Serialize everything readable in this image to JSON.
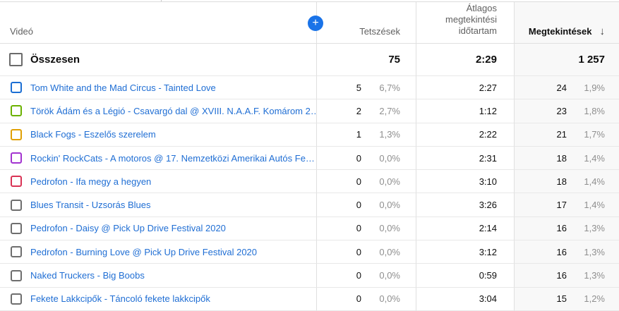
{
  "header": {
    "video_label": "Videó",
    "likes_label": "Tetszések",
    "avg_duration_label": "Átlagos\nmegtekintési\nidőtartam",
    "views_label": "Megtekintések",
    "sort_arrow": "↓",
    "add_metric_label": "+"
  },
  "totals": {
    "label": "Összesen",
    "likes": "75",
    "avg_duration": "2:29",
    "views": "1 257"
  },
  "rows": [
    {
      "checkbox_color": "#1b6ed3",
      "title": "Tom White and the Mad Circus - Tainted Love",
      "likes": "5",
      "likes_pct": "6,7%",
      "avg_duration": "2:27",
      "views": "24",
      "views_pct": "1,9%"
    },
    {
      "checkbox_color": "#6bb100",
      "title": "Török Ádám és a Légió - Csavargó dal @ XVIII. N.A.A.F. Komárom 2…",
      "likes": "2",
      "likes_pct": "2,7%",
      "avg_duration": "1:12",
      "views": "23",
      "views_pct": "1,8%"
    },
    {
      "checkbox_color": "#e0a004",
      "title": "Black Fogs - Eszelős szerelem",
      "likes": "1",
      "likes_pct": "1,3%",
      "avg_duration": "2:22",
      "views": "21",
      "views_pct": "1,7%"
    },
    {
      "checkbox_color": "#a233d0",
      "title": "Rockin' RockCats - A motoros @ 17. Nemzetközi Amerikai Autós Fe…",
      "likes": "0",
      "likes_pct": "0,0%",
      "avg_duration": "2:31",
      "views": "18",
      "views_pct": "1,4%"
    },
    {
      "checkbox_color": "#d93355",
      "title": "Pedrofon - Ifa megy a hegyen",
      "likes": "0",
      "likes_pct": "0,0%",
      "avg_duration": "3:10",
      "views": "18",
      "views_pct": "1,4%"
    },
    {
      "checkbox_color": "#6e6e6e",
      "title": "Blues Transit - Uzsorás Blues",
      "likes": "0",
      "likes_pct": "0,0%",
      "avg_duration": "3:26",
      "views": "17",
      "views_pct": "1,4%"
    },
    {
      "checkbox_color": "#6e6e6e",
      "title": "Pedrofon - Daisy @ Pick Up Drive Festival 2020",
      "likes": "0",
      "likes_pct": "0,0%",
      "avg_duration": "2:14",
      "views": "16",
      "views_pct": "1,3%"
    },
    {
      "checkbox_color": "#6e6e6e",
      "title": "Pedrofon - Burning Love @ Pick Up Drive Festival 2020",
      "likes": "0",
      "likes_pct": "0,0%",
      "avg_duration": "3:12",
      "views": "16",
      "views_pct": "1,3%"
    },
    {
      "checkbox_color": "#6e6e6e",
      "title": "Naked Truckers - Big Boobs",
      "likes": "0",
      "likes_pct": "0,0%",
      "avg_duration": "0:59",
      "views": "16",
      "views_pct": "1,3%"
    },
    {
      "checkbox_color": "#6e6e6e",
      "title": "Fekete Lakkcipők - Táncoló fekete lakkcipők",
      "likes": "0",
      "likes_pct": "0,0%",
      "avg_duration": "3:04",
      "views": "15",
      "views_pct": "1,2%"
    }
  ],
  "colors": {
    "accent_blue": "#1a73e8",
    "link_blue": "#1f6ed4",
    "sorted_column_bg": "#f8f8f8",
    "header_text": "#606060",
    "percent_text": "#8f8f8f"
  }
}
